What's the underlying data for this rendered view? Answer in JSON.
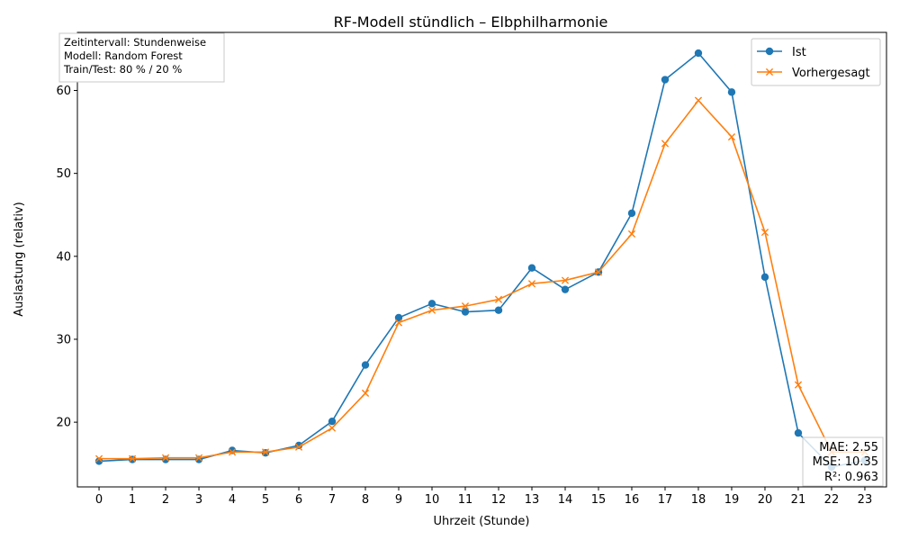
{
  "chart_data": {
    "type": "line",
    "title": "RF-Modell stündlich – Elbphilharmonie",
    "xlabel": "Uhrzeit (Stunde)",
    "ylabel": "Auslastung (relativ)",
    "x": [
      0,
      1,
      2,
      3,
      4,
      5,
      6,
      7,
      8,
      9,
      10,
      11,
      12,
      13,
      14,
      15,
      16,
      17,
      18,
      19,
      20,
      21,
      22,
      23
    ],
    "xticks": [
      "0",
      "1",
      "2",
      "3",
      "4",
      "5",
      "6",
      "7",
      "8",
      "9",
      "10",
      "11",
      "12",
      "13",
      "14",
      "15",
      "16",
      "17",
      "18",
      "19",
      "20",
      "21",
      "22",
      "23"
    ],
    "xlim": [
      -0.65,
      23.65
    ],
    "yticks": [
      "20",
      "30",
      "40",
      "50",
      "60"
    ],
    "ylim": [
      12.2,
      67.0
    ],
    "grid": false,
    "legend_position": "upper right",
    "series": [
      {
        "name": "Ist",
        "color": "#1f77b4",
        "marker": "circle",
        "values": [
          15.3,
          15.5,
          15.5,
          15.5,
          16.6,
          16.3,
          17.2,
          20.1,
          26.9,
          32.6,
          34.3,
          33.3,
          33.5,
          38.6,
          36.0,
          38.1,
          45.2,
          61.3,
          64.5,
          59.8,
          37.5,
          18.7,
          14.6,
          15.4
        ]
      },
      {
        "name": "Vorhergesagt",
        "color": "#ff7f0e",
        "marker": "x",
        "values": [
          15.6,
          15.6,
          15.7,
          15.7,
          16.4,
          16.4,
          17.0,
          19.3,
          23.5,
          32.0,
          33.5,
          34.0,
          34.8,
          36.7,
          37.1,
          38.1,
          42.7,
          53.6,
          58.8,
          54.4,
          42.9,
          24.5,
          16.4,
          16.4
        ]
      }
    ],
    "annotations": {
      "info_lines": [
        "Zeitintervall: Stundenweise",
        "Modell: Random Forest",
        "Train/Test: 80 % / 20 %"
      ],
      "metrics_lines": [
        "MAE: 2.55",
        "MSE: 10.35",
        "R²: 0.963"
      ]
    }
  }
}
